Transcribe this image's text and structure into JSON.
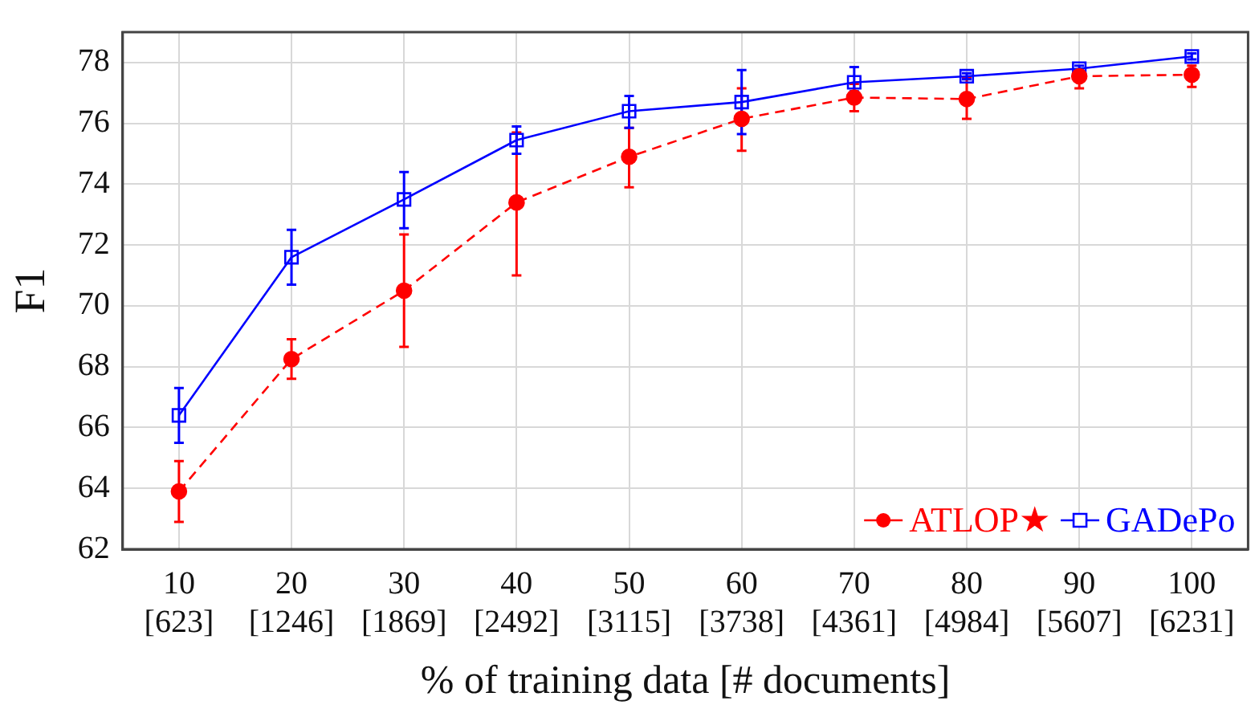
{
  "chart_data": {
    "type": "line",
    "xlabel": "% of training data [# documents]",
    "ylabel": "F1",
    "categories": [
      "10\n[623]",
      "20\n[1246]",
      "30\n[1869]",
      "40\n[2492]",
      "50\n[3115]",
      "60\n[3738]",
      "70\n[4361]",
      "80\n[4984]",
      "90\n[5607]",
      "100\n[6231]"
    ],
    "series": [
      {
        "name": "ATLOP★",
        "color": "#ff0000",
        "marker": "circle",
        "line_style": "dashed",
        "values": [
          63.9,
          68.25,
          70.5,
          73.4,
          74.9,
          76.15,
          76.85,
          76.8,
          77.55,
          77.6
        ],
        "errors": [
          [
            62.9,
            64.9
          ],
          [
            67.6,
            68.9
          ],
          [
            68.65,
            72.35
          ],
          [
            71.0,
            75.7
          ],
          [
            73.9,
            75.85
          ],
          [
            75.1,
            77.15
          ],
          [
            76.4,
            77.3
          ],
          [
            76.15,
            77.5
          ],
          [
            77.15,
            77.75
          ],
          [
            77.2,
            77.9
          ]
        ]
      },
      {
        "name": "GADePo",
        "color": "#0000ff",
        "marker": "square",
        "line_style": "solid",
        "values": [
          66.4,
          71.6,
          73.5,
          75.45,
          76.4,
          76.7,
          77.35,
          77.55,
          77.8,
          78.2
        ],
        "errors": [
          [
            65.5,
            67.3
          ],
          [
            70.7,
            72.5
          ],
          [
            72.55,
            74.4
          ],
          [
            75.0,
            75.9
          ],
          [
            75.85,
            76.9
          ],
          [
            75.65,
            77.75
          ],
          [
            77.05,
            77.85
          ],
          [
            77.45,
            77.65
          ],
          [
            77.7,
            77.9
          ],
          [
            78.1,
            78.3
          ]
        ]
      }
    ],
    "ylim": [
      62,
      79
    ],
    "yticks": [
      62,
      64,
      66,
      68,
      70,
      72,
      74,
      76,
      78
    ],
    "grid": true,
    "legend": "bottom right"
  }
}
